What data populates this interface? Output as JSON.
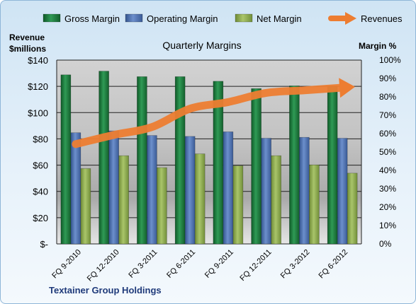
{
  "chart_data": {
    "type": "bar",
    "title": "Quarterly Margins",
    "company": "Textainer Group Holdings",
    "left_axis_label_line1": "Revenue",
    "left_axis_label_line2": "$millions",
    "right_axis_label": "Margin %",
    "categories": [
      "FQ 9-2010",
      "FQ 12-2010",
      "FQ 3-2011",
      "FQ 6-2011",
      "FQ 9-2011",
      "FQ 12-2011",
      "FQ 3-2012",
      "FQ 6-2012"
    ],
    "left_ticks": [
      "$-",
      "$20",
      "$40",
      "$60",
      "$80",
      "$100",
      "$120",
      "$140"
    ],
    "right_ticks": [
      "0%",
      "10%",
      "20%",
      "30%",
      "40%",
      "50%",
      "60%",
      "70%",
      "80%",
      "90%",
      "100%"
    ],
    "ylim_left": [
      0,
      140
    ],
    "ylim_right": [
      0,
      100
    ],
    "grid": true,
    "legend_position": "top",
    "series": [
      {
        "name": "Gross Margin",
        "axis": "right",
        "kind": "bar",
        "color": "#1e7b3c",
        "values": [
          92,
          94,
          91,
          91,
          88.5,
          84.5,
          86,
          85.5
        ]
      },
      {
        "name": "Operating Margin",
        "axis": "right",
        "kind": "bar",
        "color": "#4a6fb0",
        "values": [
          60.5,
          61.5,
          59,
          58.5,
          61,
          57.5,
          58,
          57.5
        ]
      },
      {
        "name": "Net Margin",
        "axis": "right",
        "kind": "bar",
        "color": "#8fae4e",
        "values": [
          41,
          48,
          41.5,
          49,
          42.5,
          48,
          43,
          38.5
        ]
      },
      {
        "name": "Revenues",
        "axis": "left",
        "kind": "line",
        "color": "#ed7d31",
        "values": [
          76,
          83,
          89,
          103,
          108,
          115,
          117,
          119
        ]
      }
    ]
  }
}
